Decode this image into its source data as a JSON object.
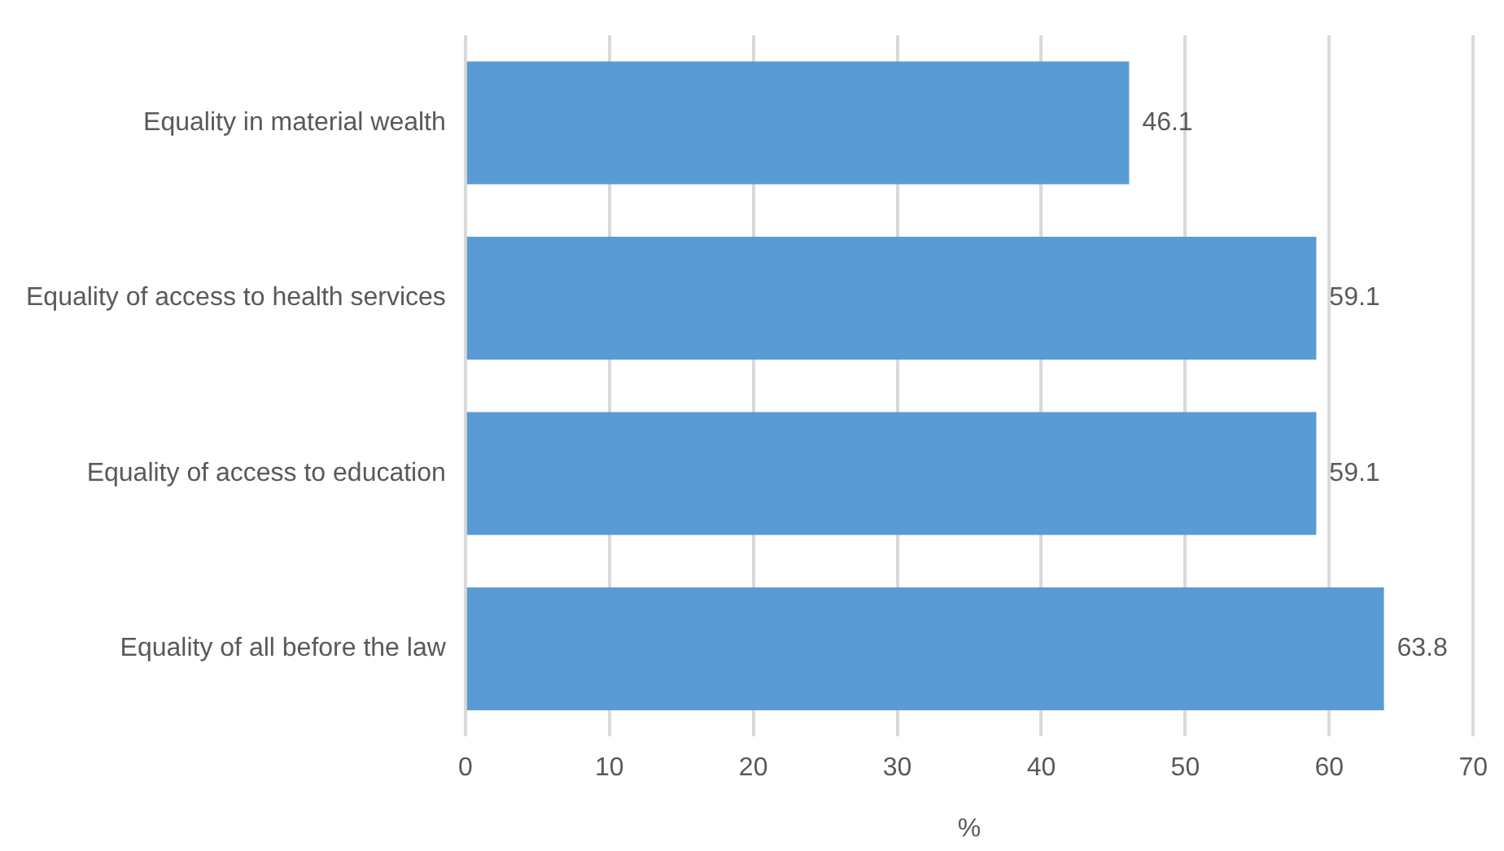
{
  "chart_data": {
    "type": "bar",
    "orientation": "horizontal",
    "xlabel": "%",
    "categories": [
      "Equality in material wealth",
      "Equality of access to health services",
      "Equality of access to education",
      "Equality of all before the law"
    ],
    "values": [
      46.1,
      59.1,
      59.1,
      63.8
    ],
    "color": "#5b9bd5",
    "xlim": [
      0,
      70
    ],
    "xticks": [
      0,
      10,
      20,
      30,
      40,
      50,
      60,
      70
    ],
    "grid": "x",
    "data_labels": true,
    "legend": false
  }
}
